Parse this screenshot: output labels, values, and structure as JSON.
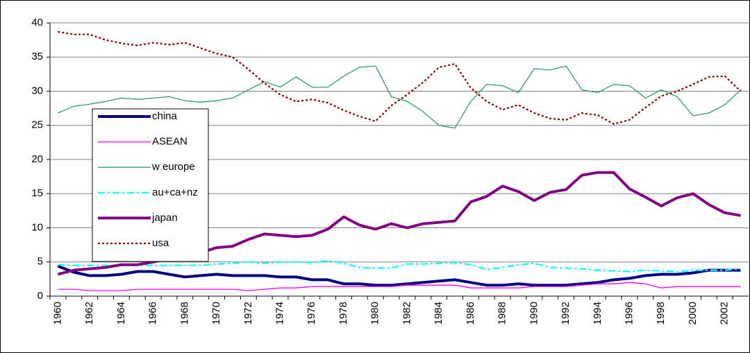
{
  "chart_data": {
    "type": "line",
    "categories": [
      "1960",
      null,
      "1962",
      null,
      "1964",
      null,
      "1966",
      null,
      "1968",
      null,
      "1970",
      null,
      "1972",
      null,
      "1974",
      null,
      "1976",
      null,
      "1978",
      null,
      "1980",
      null,
      "1982",
      null,
      "1984",
      null,
      "1986",
      null,
      "1988",
      null,
      "1990",
      null,
      "1992",
      null,
      "1994",
      null,
      "1996",
      null,
      "1998",
      null,
      "2000",
      null,
      "2002",
      null
    ],
    "series": [
      {
        "name": "china",
        "color": "#000080",
        "line_style": "solid",
        "weight": "thick",
        "values": [
          4.4,
          3.5,
          3.0,
          3.0,
          3.2,
          3.6,
          3.6,
          3.2,
          2.8,
          3.0,
          3.2,
          3.0,
          3.0,
          3.0,
          2.8,
          2.8,
          2.4,
          2.4,
          1.8,
          1.8,
          1.6,
          1.6,
          1.8,
          2.0,
          2.2,
          2.4,
          2.0,
          1.6,
          1.6,
          1.8,
          1.6,
          1.6,
          1.6,
          1.8,
          2.0,
          2.4,
          2.6,
          3.0,
          3.2,
          3.2,
          3.4,
          3.8,
          3.8,
          3.8
        ]
      },
      {
        "name": "ASEAN",
        "color": "#ff00ff",
        "line_style": "solid",
        "weight": "thin",
        "values": [
          1.0,
          1.0,
          0.8,
          0.8,
          0.8,
          1.0,
          1.0,
          1.0,
          1.0,
          1.0,
          1.0,
          1.0,
          0.8,
          1.0,
          1.2,
          1.2,
          1.4,
          1.4,
          1.4,
          1.4,
          1.4,
          1.4,
          1.6,
          1.6,
          1.6,
          1.6,
          1.2,
          1.2,
          1.2,
          1.2,
          1.4,
          1.4,
          1.4,
          1.6,
          1.8,
          1.8,
          2.0,
          1.8,
          1.2,
          1.4,
          1.4,
          1.4,
          1.4,
          1.4
        ]
      },
      {
        "name": "w  europe",
        "color": "#339966",
        "line_style": "solid",
        "weight": "thin",
        "values": [
          26.8,
          27.8,
          28.1,
          28.5,
          29.0,
          28.8,
          29.0,
          29.2,
          28.6,
          28.4,
          28.6,
          29.0,
          30.2,
          31.4,
          30.6,
          32.1,
          30.6,
          30.6,
          32.2,
          33.5,
          33.7,
          29.2,
          28.5,
          27.0,
          25.0,
          24.6,
          28.5,
          31.0,
          30.8,
          29.8,
          33.3,
          33.1,
          33.7,
          30.2,
          29.8,
          31.0,
          30.8,
          29.0,
          30.2,
          29.2,
          26.4,
          26.8,
          28.0,
          30.2
        ]
      },
      {
        "name": "au+ca+nz",
        "color": "#00ffff",
        "line_style": "dash-dot",
        "weight": "medium",
        "values": [
          4.6,
          4.5,
          4.5,
          4.5,
          4.5,
          4.5,
          4.5,
          4.5,
          4.5,
          4.5,
          4.7,
          4.8,
          5.0,
          4.8,
          5.0,
          5.0,
          4.9,
          5.2,
          4.8,
          4.2,
          4.1,
          4.1,
          4.7,
          4.7,
          4.8,
          4.9,
          4.6,
          3.9,
          4.2,
          4.6,
          4.8,
          4.2,
          4.1,
          4.0,
          3.8,
          3.7,
          3.6,
          3.8,
          3.7,
          3.6,
          3.8,
          3.8,
          3.8,
          4.0
        ]
      },
      {
        "name": "japan",
        "color": "#800080",
        "line_style": "solid",
        "weight": "thick",
        "values": [
          3.2,
          3.8,
          4.0,
          4.2,
          4.6,
          4.6,
          5.0,
          5.5,
          5.8,
          6.4,
          7.1,
          7.3,
          8.3,
          9.1,
          8.9,
          8.7,
          8.9,
          9.8,
          11.6,
          10.4,
          9.8,
          10.6,
          10.0,
          10.6,
          10.8,
          11.0,
          13.8,
          14.6,
          16.1,
          15.3,
          14.0,
          15.2,
          15.6,
          17.7,
          18.1,
          18.1,
          15.7,
          14.5,
          13.2,
          14.4,
          15.0,
          13.4,
          12.2,
          11.8
        ]
      },
      {
        "name": "usa",
        "color": "#800000",
        "line_style": "dotted",
        "weight": "medium",
        "values": [
          38.7,
          38.3,
          38.3,
          37.5,
          37.0,
          36.7,
          37.1,
          36.8,
          37.1,
          36.3,
          35.5,
          35.0,
          33.2,
          31.2,
          29.5,
          28.5,
          28.8,
          28.3,
          27.2,
          26.3,
          25.6,
          27.9,
          29.5,
          31.3,
          33.5,
          34.0,
          30.5,
          28.5,
          27.3,
          28.0,
          26.8,
          26.0,
          25.8,
          26.8,
          26.5,
          25.2,
          25.8,
          27.6,
          29.3,
          30.0,
          31.0,
          32.1,
          32.2,
          30.0
        ]
      }
    ],
    "ylim": [
      0,
      40
    ],
    "yticks": [
      0,
      5,
      10,
      15,
      20,
      25,
      30,
      35,
      40
    ],
    "grid": true,
    "legend": "left"
  }
}
